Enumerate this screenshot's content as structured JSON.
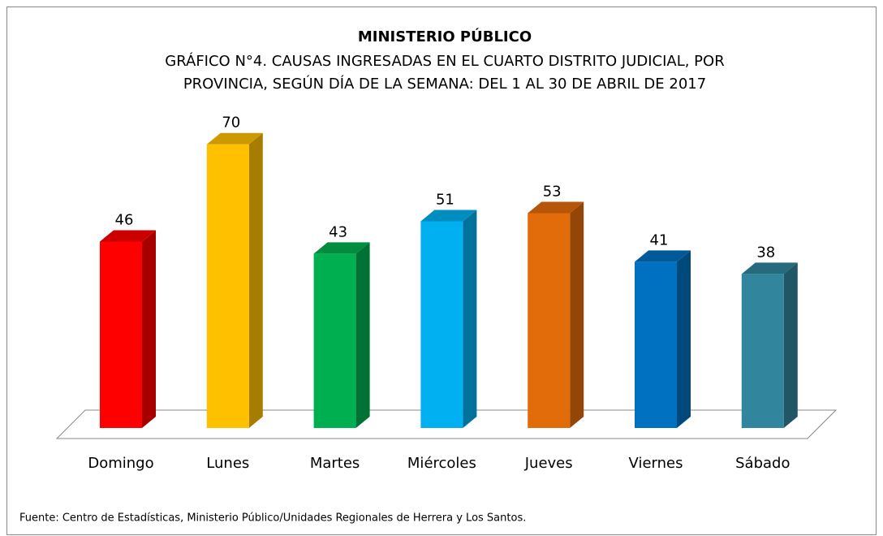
{
  "chart_data": {
    "type": "bar3d",
    "title": "MINISTERIO PÚBLICO",
    "subtitle": [
      "GRÁFICO N°4. CAUSAS INGRESADAS EN EL CUARTO DISTRITO JUDICIAL, POR",
      "PROVINCIA, SEGÚN DÍA DE LA SEMANA:  DEL 1 AL 30 DE ABRIL DE 2017"
    ],
    "categories": [
      "Domingo",
      "Lunes",
      "Martes",
      "Miércoles",
      "Jueves",
      "Viernes",
      "Sábado"
    ],
    "values": [
      46,
      70,
      43,
      51,
      53,
      41,
      38
    ],
    "colors": [
      "#ff0000",
      "#ffc000",
      "#00b050",
      "#00b0f0",
      "#e36c0a",
      "#0070c0",
      "#31859c"
    ],
    "source": "Fuente: Centro de Estadísticas, Ministerio Público/Unidades Regionales de Herrera y Los Santos."
  }
}
